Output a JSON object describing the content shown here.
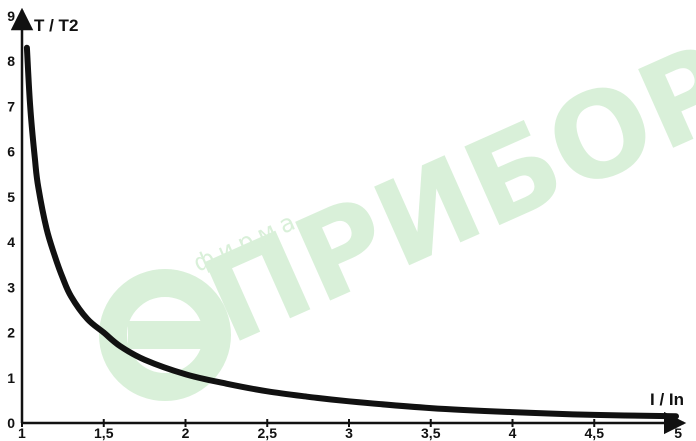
{
  "watermark": {
    "brand": "ПРИБОРЫ",
    "prefix": "фирма",
    "color": "#d9f0d9"
  },
  "chart_data": {
    "type": "line",
    "xlabel": "I / In",
    "ylabel": "T / T2",
    "xlim": [
      1,
      5
    ],
    "ylim": [
      0,
      9
    ],
    "x_ticks": [
      "1",
      "1,5",
      "2",
      "2,5",
      "3",
      "3,5",
      "4",
      "4,5",
      "5"
    ],
    "y_ticks": [
      "0",
      "1",
      "2",
      "3",
      "4",
      "5",
      "6",
      "7",
      "8",
      "9"
    ],
    "grid": false,
    "line_color": "#111111",
    "series": [
      {
        "x": [
          1.03,
          1.05,
          1.08,
          1.1,
          1.15,
          1.2,
          1.25,
          1.3,
          1.4,
          1.5,
          1.6,
          1.75,
          2.0,
          2.25,
          2.5,
          2.75,
          3.0,
          3.5,
          4.0,
          4.5,
          5.0
        ],
        "y": [
          8.3,
          7.0,
          5.8,
          5.2,
          4.3,
          3.7,
          3.2,
          2.8,
          2.3,
          2.0,
          1.7,
          1.4,
          1.08,
          0.87,
          0.7,
          0.58,
          0.48,
          0.33,
          0.24,
          0.18,
          0.15
        ]
      }
    ]
  }
}
